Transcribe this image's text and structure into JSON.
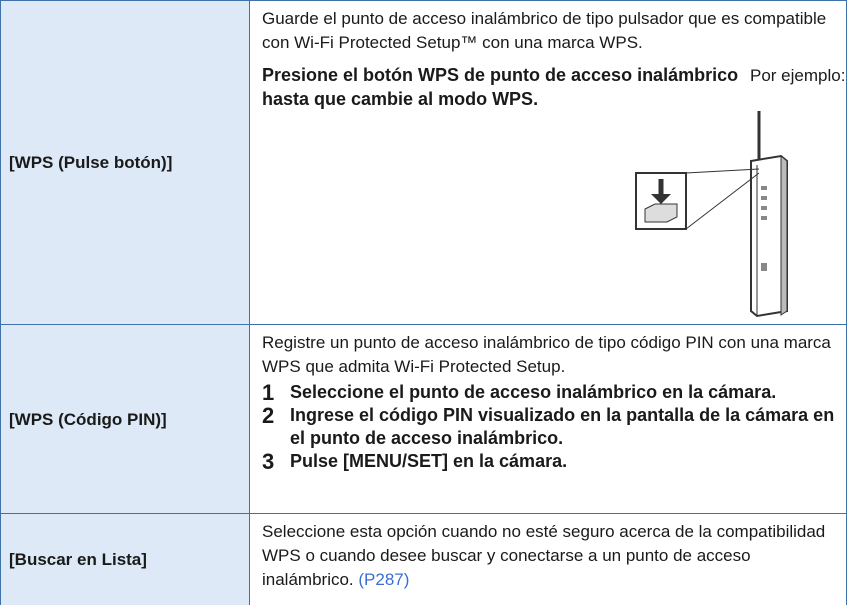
{
  "table": {
    "rows": [
      {
        "label": "[WPS (Pulse botón)]",
        "description": "Guarde el punto de acceso inalámbrico de tipo pulsador que es compatible con Wi-Fi Protected Setup™ con una marca WPS.",
        "instruction": "Presione el botón WPS de punto de acceso inalámbrico hasta que cambie al modo WPS.",
        "example_label": "Por ejemplo:"
      },
      {
        "label": "[WPS (Código PIN)]",
        "description": "Registre un punto de acceso inalámbrico de tipo código PIN con una marca WPS que admita Wi-Fi Protected Setup.",
        "steps": [
          {
            "number": 1,
            "text": "Seleccione el punto de acceso inalámbrico en la cámara."
          },
          {
            "number": 2,
            "text": "Ingrese el código PIN visualizado en la pantalla de la cámara en el punto de acceso inalámbrico."
          },
          {
            "number": 3,
            "text": "Pulse [MENU/SET] en la cámara."
          }
        ]
      },
      {
        "label": "[Buscar en Lista]",
        "description": "Seleccione esta opción cuando no esté seguro acerca de la compatibilidad WPS o cuando desee buscar y conectarse a un punto de acceso inalámbrico.",
        "link": "(P287)"
      }
    ]
  }
}
